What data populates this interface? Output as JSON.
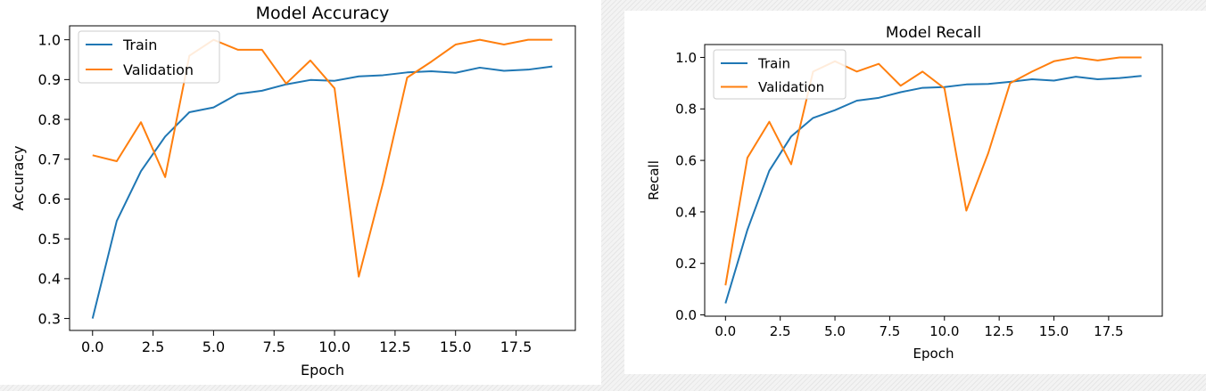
{
  "chart_data": [
    {
      "type": "line",
      "title": "Model Accuracy",
      "xlabel": "Epoch",
      "ylabel": "Accuracy",
      "xlim": [
        -0.95,
        19.95
      ],
      "ylim": [
        0.27,
        1.035
      ],
      "xticks": [
        0,
        2.5,
        5,
        7.5,
        10,
        12.5,
        15,
        17.5
      ],
      "xtick_labels": [
        "0.0",
        "2.5",
        "5.0",
        "7.5",
        "10.0",
        "12.5",
        "15.0",
        "17.5"
      ],
      "yticks": [
        0.3,
        0.4,
        0.5,
        0.6,
        0.7,
        0.8,
        0.9,
        1.0
      ],
      "ytick_labels": [
        "0.3",
        "0.4",
        "0.5",
        "0.6",
        "0.7",
        "0.8",
        "0.9",
        "1.0"
      ],
      "legend_position": "upper-left",
      "grid": false,
      "x": [
        0,
        1,
        2,
        3,
        4,
        5,
        6,
        7,
        8,
        9,
        10,
        11,
        12,
        13,
        14,
        15,
        16,
        17,
        18,
        19
      ],
      "series": [
        {
          "name": "Train",
          "color": "#1f77b4",
          "values": [
            0.3,
            0.545,
            0.67,
            0.757,
            0.818,
            0.83,
            0.864,
            0.872,
            0.888,
            0.899,
            0.897,
            0.908,
            0.911,
            0.918,
            0.921,
            0.917,
            0.93,
            0.922,
            0.925,
            0.933
          ]
        },
        {
          "name": "Validation",
          "color": "#ff7f0e",
          "values": [
            0.71,
            0.695,
            0.793,
            0.655,
            0.96,
            1.0,
            0.975,
            0.975,
            0.89,
            0.948,
            0.878,
            0.405,
            0.64,
            0.905,
            0.945,
            0.988,
            1.0,
            0.988,
            1.0,
            1.0
          ]
        }
      ]
    },
    {
      "type": "line",
      "title": "Model Recall",
      "xlabel": "Epoch",
      "ylabel": "Recall",
      "xlim": [
        -0.95,
        19.95
      ],
      "ylim": [
        -0.005,
        1.05
      ],
      "xticks": [
        0,
        2.5,
        5,
        7.5,
        10,
        12.5,
        15,
        17.5
      ],
      "xtick_labels": [
        "0.0",
        "2.5",
        "5.0",
        "7.5",
        "10.0",
        "12.5",
        "15.0",
        "17.5"
      ],
      "yticks": [
        0.0,
        0.2,
        0.4,
        0.6,
        0.8,
        1.0
      ],
      "ytick_labels": [
        "0.0",
        "0.2",
        "0.4",
        "0.6",
        "0.8",
        "1.0"
      ],
      "legend_position": "upper-left",
      "grid": false,
      "x": [
        0,
        1,
        2,
        3,
        4,
        5,
        6,
        7,
        8,
        9,
        10,
        11,
        12,
        13,
        14,
        15,
        16,
        17,
        18,
        19
      ],
      "series": [
        {
          "name": "Train",
          "color": "#1f77b4",
          "values": [
            0.045,
            0.33,
            0.56,
            0.693,
            0.765,
            0.795,
            0.832,
            0.843,
            0.865,
            0.882,
            0.885,
            0.895,
            0.897,
            0.905,
            0.915,
            0.91,
            0.925,
            0.915,
            0.92,
            0.928
          ]
        },
        {
          "name": "Validation",
          "color": "#ff7f0e",
          "values": [
            0.115,
            0.61,
            0.75,
            0.585,
            0.945,
            0.985,
            0.945,
            0.975,
            0.89,
            0.945,
            0.88,
            0.405,
            0.628,
            0.9,
            0.945,
            0.985,
            1.0,
            0.988,
            1.0,
            1.0
          ]
        }
      ]
    }
  ]
}
